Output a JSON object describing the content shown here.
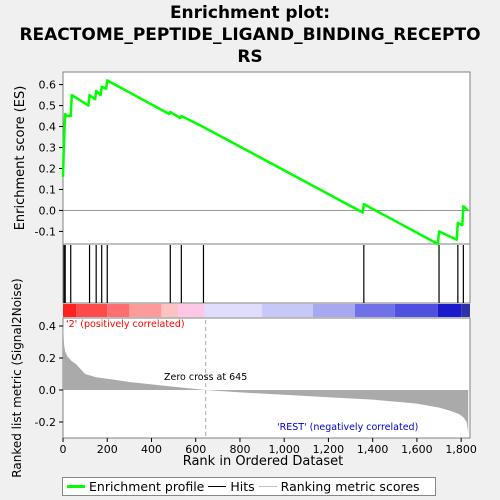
{
  "title_lines": [
    "Enrichment plot:",
    "REACTOME_PEPTIDE_LIGAND_BINDING_RECEPTO",
    "RS"
  ],
  "colors": {
    "es_line": "#00ff00",
    "hit": "#000000",
    "metric_fill": "#aaaaaa",
    "pos_label": "#ff0000",
    "neg_label": "#0000cc",
    "zero_line": "#aaaaaa"
  },
  "chart_data": {
    "type": "line",
    "x_axis": {
      "label": "Rank in Ordered Dataset",
      "range": [
        0,
        1840
      ],
      "ticks": [
        0,
        200,
        400,
        600,
        800,
        1000,
        1200,
        1400,
        1600,
        1800
      ],
      "tick_labels": [
        "0",
        "200",
        "400",
        "600",
        "800",
        "1,000",
        "1,200",
        "1,400",
        "1,600",
        "1,800"
      ]
    },
    "es_panel": {
      "ylabel": "Enrichment score (ES)",
      "ylim": [
        -0.16,
        0.66
      ],
      "ticks": [
        -0.1,
        0.0,
        0.1,
        0.2,
        0.3,
        0.4,
        0.5,
        0.6
      ],
      "tick_labels": [
        "-0.1",
        "0.0",
        "0.1",
        "0.2",
        "0.3",
        "0.4",
        "0.5",
        "0.6"
      ],
      "grid": false,
      "x": [
        0,
        3,
        6,
        8,
        10,
        15,
        35,
        40,
        115,
        120,
        145,
        150,
        170,
        175,
        195,
        200,
        480,
        485,
        530,
        535,
        630,
        1355,
        1360,
        1695,
        1700,
        1780,
        1785,
        1805,
        1810,
        1830
      ],
      "y": [
        0.16,
        0.28,
        0.36,
        0.42,
        0.46,
        0.45,
        0.45,
        0.55,
        0.5,
        0.55,
        0.53,
        0.57,
        0.55,
        0.59,
        0.58,
        0.62,
        0.46,
        0.47,
        0.44,
        0.45,
        0.4,
        -0.01,
        0.03,
        -0.16,
        -0.1,
        -0.14,
        -0.06,
        -0.07,
        0.02,
        0.0
      ]
    },
    "hits": [
      5,
      10,
      35,
      120,
      150,
      175,
      200,
      485,
      535,
      635,
      1360,
      1700,
      1785,
      1810
    ],
    "ranking_panel": {
      "ylabel": "Ranked list metric (Signal2Noise)",
      "ylim": [
        -0.3,
        0.45
      ],
      "ticks": [
        -0.2,
        0.0,
        0.2,
        0.4
      ],
      "tick_labels": [
        "-0.2",
        "0.0",
        "0.2",
        "0.4"
      ],
      "profile_x": [
        0,
        5,
        10,
        20,
        40,
        60,
        80,
        100,
        150,
        200,
        300,
        400,
        500,
        645,
        800,
        1000,
        1200,
        1400,
        1600,
        1700,
        1750,
        1790,
        1810,
        1825,
        1832
      ],
      "profile_y": [
        0.42,
        0.28,
        0.24,
        0.21,
        0.18,
        0.16,
        0.13,
        0.1,
        0.08,
        0.07,
        0.05,
        0.035,
        0.02,
        0.0,
        -0.015,
        -0.03,
        -0.045,
        -0.06,
        -0.085,
        -0.11,
        -0.13,
        -0.15,
        -0.17,
        -0.2,
        -0.27
      ],
      "zero_cross_label": "Zero cross at 645",
      "zero_cross": 645,
      "pos_label": "'2' (positively correlated)",
      "neg_label": "'REST' (negatively correlated)"
    },
    "color_bar": [
      {
        "from": 0,
        "to": 60,
        "color": "#ff2020"
      },
      {
        "from": 60,
        "to": 200,
        "color": "#ff4a4a"
      },
      {
        "from": 200,
        "to": 300,
        "color": "#ff6e6e"
      },
      {
        "from": 300,
        "to": 445,
        "color": "#ff9a9a"
      },
      {
        "from": 445,
        "to": 520,
        "color": "#ffc2c2"
      },
      {
        "from": 520,
        "to": 640,
        "color": "#ffc6e8"
      },
      {
        "from": 640,
        "to": 900,
        "color": "#dedefc"
      },
      {
        "from": 900,
        "to": 1130,
        "color": "#c8c8f8"
      },
      {
        "from": 1130,
        "to": 1320,
        "color": "#a8a8f0"
      },
      {
        "from": 1320,
        "to": 1500,
        "color": "#7070e8"
      },
      {
        "from": 1500,
        "to": 1695,
        "color": "#5050e0"
      },
      {
        "from": 1695,
        "to": 1800,
        "color": "#1a1acc"
      },
      {
        "from": 1800,
        "to": 1840,
        "color": "#3030a8"
      }
    ]
  },
  "legend": [
    {
      "label": "Enrichment profile",
      "color": "#00ff00",
      "width": 3
    },
    {
      "label": "Hits",
      "color": "#000000",
      "width": 1
    },
    {
      "label": "Ranking metric scores",
      "color": "#c0c0c0",
      "width": 1
    }
  ]
}
